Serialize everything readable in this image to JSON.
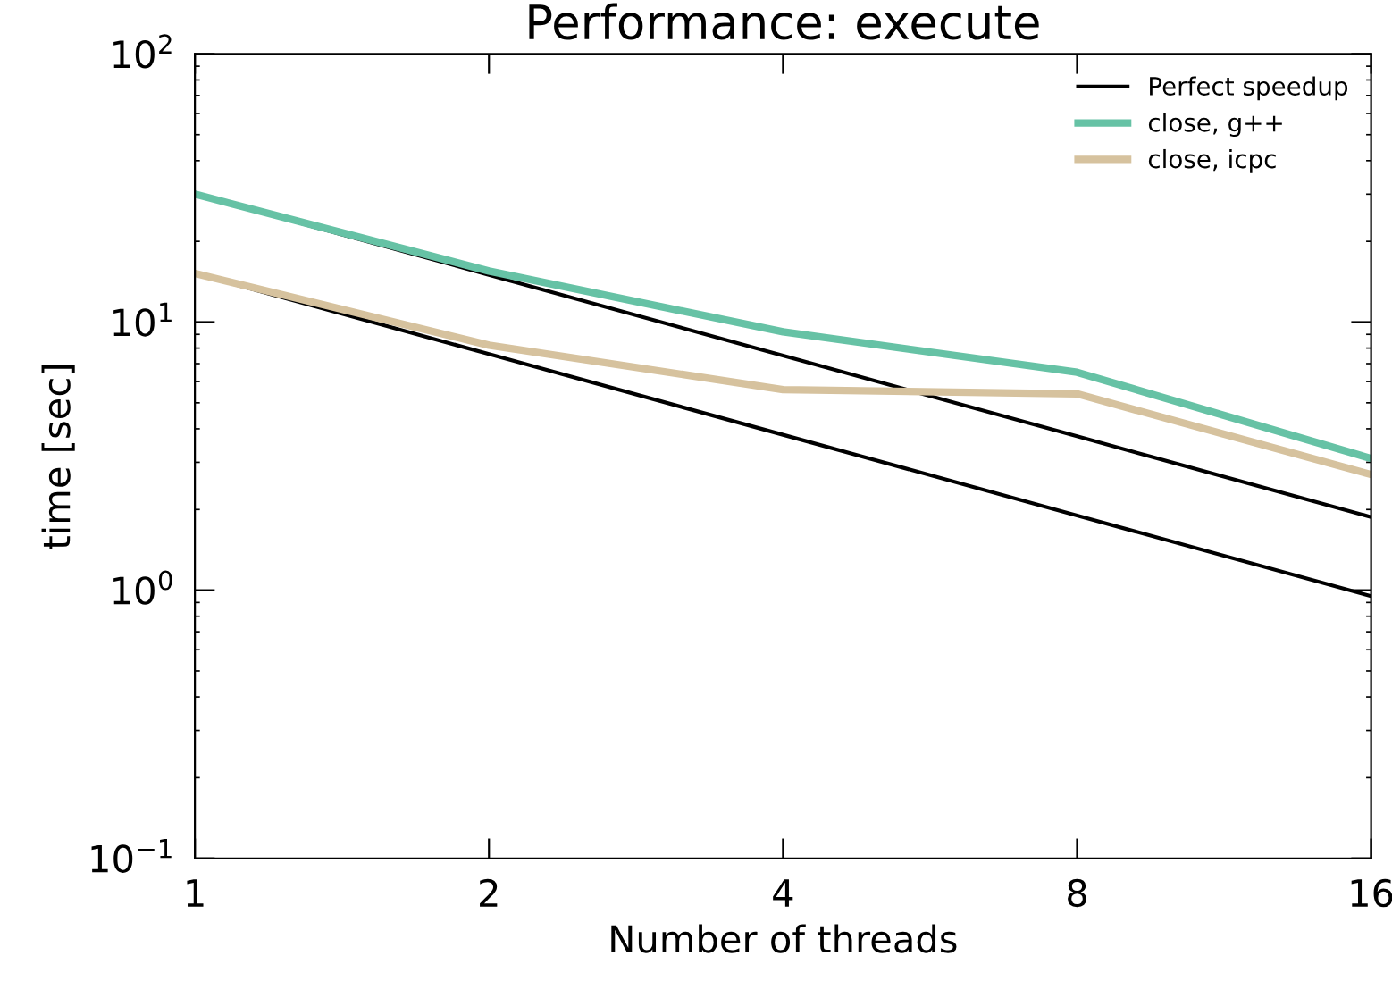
{
  "chart_data": {
    "type": "line",
    "title": "Performance: execute",
    "xlabel": "Number of threads",
    "ylabel": "time [sec]",
    "x": [
      1,
      2,
      4,
      8,
      16
    ],
    "series": [
      {
        "name": "Perfect speedup",
        "color": "#000000",
        "values": [
          30,
          15,
          7.5,
          3.75,
          1.875
        ]
      },
      {
        "color": "#000000",
        "values": [
          15.2,
          7.6,
          3.8,
          1.9,
          0.95
        ]
      },
      {
        "name": "close, g++",
        "color": "#66c2a5",
        "values": [
          30,
          15.5,
          9.2,
          6.5,
          3.1
        ]
      },
      {
        "name": "close, icpc",
        "color": "#d6c29e",
        "values": [
          15.2,
          8.2,
          5.6,
          5.4,
          2.7
        ]
      }
    ],
    "log": "xy",
    "xlim": [
      1,
      16
    ],
    "ylim": [
      0.1,
      100
    ],
    "xticks": [
      1,
      2,
      4,
      8,
      16
    ],
    "yticks": [
      {
        "value": 0.1,
        "label": "10$^{−1}$"
      },
      {
        "value": 1,
        "label": "10$^{0}$"
      },
      {
        "value": 10,
        "label": "10$^{1}$"
      },
      {
        "value": 100,
        "label": "10$^{2}$"
      }
    ],
    "grid": false,
    "legend": "top right",
    "marker": "none",
    "line_style": "solid"
  }
}
